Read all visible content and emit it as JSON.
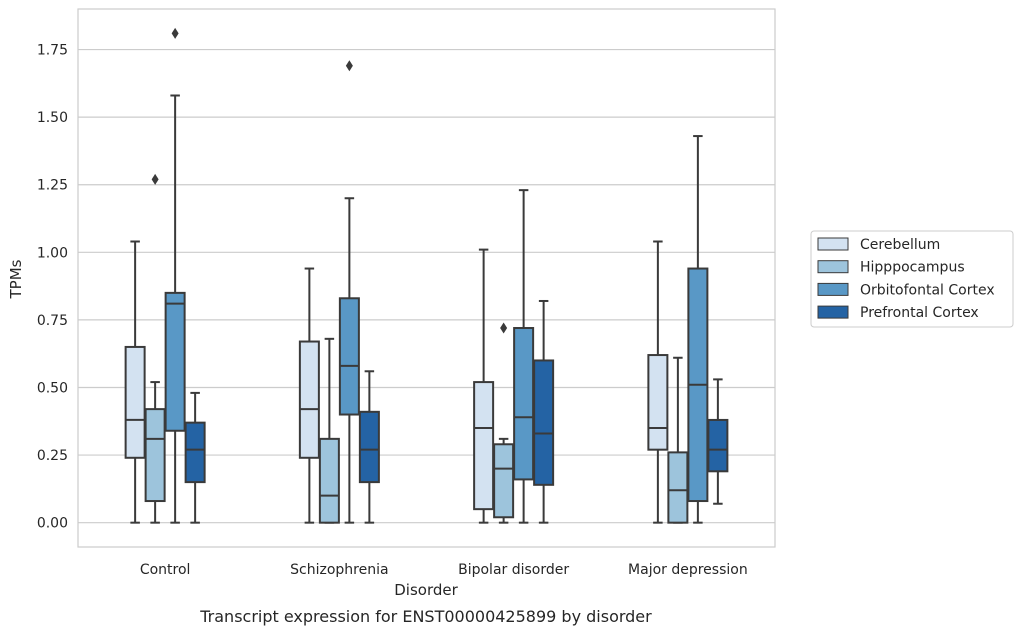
{
  "chart_data": {
    "type": "box",
    "xlabel": "Disorder",
    "ylabel": "TPMs",
    "caption": "Transcript expression for ENST00000425899 by disorder",
    "ylim": [
      -0.09,
      1.9
    ],
    "yticks": [
      0.0,
      0.25,
      0.5,
      0.75,
      1.0,
      1.25,
      1.5,
      1.75
    ],
    "ytick_labels": [
      "0.00",
      "0.25",
      "0.50",
      "0.75",
      "1.00",
      "1.25",
      "1.50",
      "1.75"
    ],
    "grid": "horizontal",
    "legend_position": "right",
    "categories": [
      "Control",
      "Schizophrenia",
      "Bipolar disorder",
      "Major depression"
    ],
    "series": [
      {
        "name": "Cerebellum",
        "color": "#d3e2f1",
        "boxes": [
          {
            "q1": 0.24,
            "median": 0.38,
            "q3": 0.65,
            "whisker_low": 0.0,
            "whisker_high": 1.04,
            "outliers": []
          },
          {
            "q1": 0.24,
            "median": 0.42,
            "q3": 0.67,
            "whisker_low": 0.0,
            "whisker_high": 0.94,
            "outliers": []
          },
          {
            "q1": 0.05,
            "median": 0.35,
            "q3": 0.52,
            "whisker_low": 0.0,
            "whisker_high": 1.01,
            "outliers": []
          },
          {
            "q1": 0.27,
            "median": 0.35,
            "q3": 0.62,
            "whisker_low": 0.0,
            "whisker_high": 1.04,
            "outliers": []
          }
        ]
      },
      {
        "name": "Hipppocampus",
        "color": "#9dc4dc",
        "boxes": [
          {
            "q1": 0.08,
            "median": 0.31,
            "q3": 0.42,
            "whisker_low": 0.0,
            "whisker_high": 0.52,
            "outliers": [
              1.27
            ]
          },
          {
            "q1": 0.0,
            "median": 0.1,
            "q3": 0.31,
            "whisker_low": 0.0,
            "whisker_high": 0.68,
            "outliers": []
          },
          {
            "q1": 0.02,
            "median": 0.2,
            "q3": 0.29,
            "whisker_low": 0.0,
            "whisker_high": 0.31,
            "outliers": [
              0.72
            ]
          },
          {
            "q1": 0.0,
            "median": 0.12,
            "q3": 0.26,
            "whisker_low": 0.0,
            "whisker_high": 0.61,
            "outliers": []
          }
        ]
      },
      {
        "name": "Orbitofontal Cortex",
        "color": "#5998c6",
        "boxes": [
          {
            "q1": 0.34,
            "median": 0.81,
            "q3": 0.85,
            "whisker_low": 0.0,
            "whisker_high": 1.58,
            "outliers": [
              1.81
            ]
          },
          {
            "q1": 0.4,
            "median": 0.58,
            "q3": 0.83,
            "whisker_low": 0.0,
            "whisker_high": 1.2,
            "outliers": [
              1.69
            ]
          },
          {
            "q1": 0.16,
            "median": 0.39,
            "q3": 0.72,
            "whisker_low": 0.0,
            "whisker_high": 1.23,
            "outliers": []
          },
          {
            "q1": 0.08,
            "median": 0.51,
            "q3": 0.94,
            "whisker_low": 0.0,
            "whisker_high": 1.43,
            "outliers": []
          }
        ]
      },
      {
        "name": "Prefrontal Cortex",
        "color": "#2463a4",
        "boxes": [
          {
            "q1": 0.15,
            "median": 0.27,
            "q3": 0.37,
            "whisker_low": 0.0,
            "whisker_high": 0.48,
            "outliers": []
          },
          {
            "q1": 0.15,
            "median": 0.27,
            "q3": 0.41,
            "whisker_low": 0.0,
            "whisker_high": 0.56,
            "outliers": []
          },
          {
            "q1": 0.14,
            "median": 0.33,
            "q3": 0.6,
            "whisker_low": 0.0,
            "whisker_high": 0.82,
            "outliers": []
          },
          {
            "q1": 0.19,
            "median": 0.27,
            "q3": 0.38,
            "whisker_low": 0.07,
            "whisker_high": 0.53,
            "outliers": []
          }
        ]
      }
    ]
  }
}
